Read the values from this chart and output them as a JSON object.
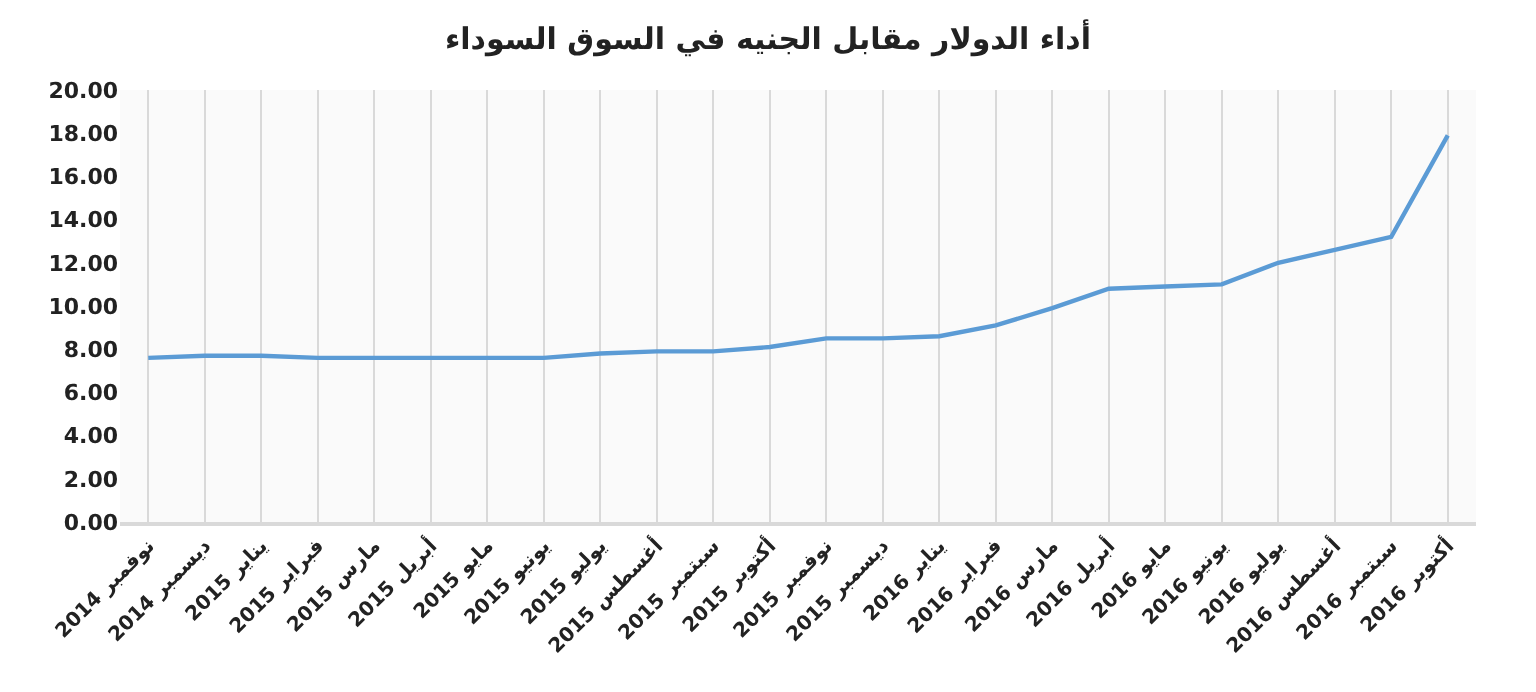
{
  "chart_data": {
    "type": "line",
    "title": "أداء الدولار مقابل الجنيه في السوق السوداء",
    "categories": [
      "نوفمبر 2014",
      "ديسمبر 2014",
      "يناير 2015",
      "فبراير 2015",
      "مارس 2015",
      "أبريل 2015",
      "مايو 2015",
      "يونيو 2015",
      "يوليو 2015",
      "أغسطس 2015",
      "سبتمبر 2015",
      "أكتوبر 2015",
      "نوفمبر 2015",
      "ديسمبر 2015",
      "يناير 2016",
      "فبراير 2016",
      "مارس 2016",
      "أبريل 2016",
      "مايو 2016",
      "يونيو 2016",
      "يوليو 2016",
      "أغسطس 2016",
      "سبتمبر 2016",
      "أكتوبر 2016"
    ],
    "series": [
      {
        "color": "#5b9bd5",
        "values": [
          7.6,
          7.7,
          7.7,
          7.6,
          7.6,
          7.6,
          7.6,
          7.6,
          7.8,
          7.9,
          7.9,
          8.1,
          8.5,
          8.5,
          8.6,
          9.1,
          9.9,
          10.8,
          10.9,
          11.0,
          12.0,
          12.6,
          13.2,
          17.9
        ]
      }
    ],
    "ylim": [
      0,
      20
    ],
    "yticks": [
      {
        "value": 0,
        "label": "0.00"
      },
      {
        "value": 2,
        "label": "2.00"
      },
      {
        "value": 4,
        "label": "4.00"
      },
      {
        "value": 6,
        "label": "6.00"
      },
      {
        "value": 8,
        "label": "8.00"
      },
      {
        "value": 10,
        "label": "10.00"
      },
      {
        "value": 12,
        "label": "12.00"
      },
      {
        "value": 14,
        "label": "14.00"
      },
      {
        "value": 16,
        "label": "16.00"
      },
      {
        "value": 18,
        "label": "18.00"
      },
      {
        "value": 20,
        "label": "20.00"
      }
    ],
    "grid": "x",
    "marker": "none",
    "line_style": "solid"
  }
}
